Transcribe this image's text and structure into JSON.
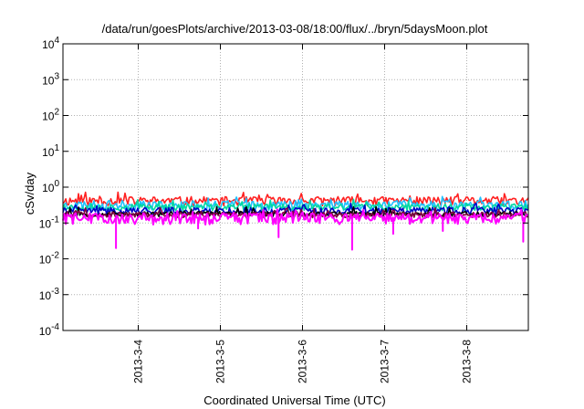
{
  "chart_data": {
    "type": "line",
    "title": "/data/run/goesPlots/archive/2013-03-08/18:00/flux/../bryn/5daysMoon.plot",
    "xlabel": "Coordinated Universal Time (UTC)",
    "ylabel": "cSv/day",
    "y_scale": "log",
    "ylim": [
      0.0001,
      10000
    ],
    "y_ticks": [
      {
        "value": 0.0001,
        "base": "10",
        "exp": "-4"
      },
      {
        "value": 0.001,
        "base": "10",
        "exp": "-3"
      },
      {
        "value": 0.01,
        "base": "10",
        "exp": "-2"
      },
      {
        "value": 0.1,
        "base": "10",
        "exp": "-1"
      },
      {
        "value": 1,
        "base": "10",
        "exp": "0"
      },
      {
        "value": 10,
        "base": "10",
        "exp": "1"
      },
      {
        "value": 100,
        "base": "10",
        "exp": "2"
      },
      {
        "value": 1000,
        "base": "10",
        "exp": "3"
      },
      {
        "value": 10000,
        "base": "10",
        "exp": "4"
      }
    ],
    "xlim": [
      "2013-03-03T02:00",
      "2013-03-08T18:00"
    ],
    "x_ticks": [
      {
        "value": "2013-03-04T00:00",
        "label": "2013-3-4"
      },
      {
        "value": "2013-03-05T00:00",
        "label": "2013-3-5"
      },
      {
        "value": "2013-03-06T00:00",
        "label": "2013-3-6"
      },
      {
        "value": "2013-03-07T00:00",
        "label": "2013-3-7"
      },
      {
        "value": "2013-03-08T00:00",
        "label": "2013-3-8"
      }
    ],
    "grid": true,
    "series": [
      {
        "color": "#ff2020",
        "base": 0.42,
        "spread": 0.12,
        "seed": 11
      },
      {
        "color": "#20c0ff",
        "base": 0.32,
        "spread": 0.1,
        "seed": 23
      },
      {
        "color": "#00d8a0",
        "base": 0.28,
        "spread": 0.06,
        "seed": 37
      },
      {
        "color": "#0000c8",
        "base": 0.22,
        "spread": 0.05,
        "seed": 41
      },
      {
        "color": "#000000",
        "base": 0.18,
        "spread": 0.03,
        "seed": 53
      },
      {
        "color": "#800040",
        "base": 0.17,
        "spread": 0.03,
        "seed": 67
      },
      {
        "color": "#ff00ff",
        "base": 0.14,
        "spread": 0.05,
        "seed": 79,
        "dips": [
          {
            "x": "2013-03-03T17:30",
            "y": 0.02
          },
          {
            "x": "2013-03-04T17:30",
            "y": 0.07
          },
          {
            "x": "2013-03-05T17:00",
            "y": 0.04
          },
          {
            "x": "2013-03-06T14:30",
            "y": 0.018
          },
          {
            "x": "2013-03-07T02:30",
            "y": 0.05
          },
          {
            "x": "2013-03-07T17:00",
            "y": 0.06
          },
          {
            "x": "2013-03-08T16:30",
            "y": 0.03
          }
        ]
      }
    ]
  }
}
